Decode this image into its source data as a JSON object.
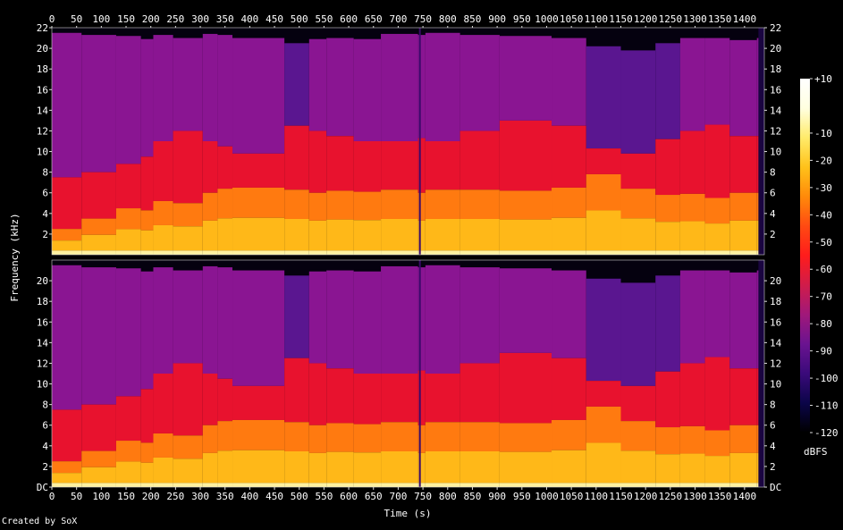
{
  "chart_data": {
    "type": "heatmap",
    "title": "",
    "xlabel": "Time (s)",
    "ylabel": "Frequency (kHz)",
    "xlim": [
      0,
      1440
    ],
    "x_ticks": [
      "0",
      "50",
      "100",
      "150",
      "200",
      "250",
      "300",
      "350",
      "400",
      "450",
      "500",
      "550",
      "600",
      "650",
      "700",
      "750",
      "800",
      "850",
      "900",
      "950",
      "1000",
      "1050",
      "1100",
      "1150",
      "1200",
      "1250",
      "1300",
      "1350",
      "1400"
    ],
    "channels": [
      {
        "y_ticks": [
          "22",
          "20",
          "18",
          "16",
          "14",
          "12",
          "10",
          "8",
          "6",
          "4",
          "2"
        ],
        "ylim": [
          0,
          22
        ]
      },
      {
        "y_ticks": [
          "20",
          "18",
          "16",
          "14",
          "12",
          "10",
          "8",
          "6",
          "4",
          "2",
          "DC"
        ],
        "ylim": [
          0,
          22
        ]
      }
    ],
    "colorbar": {
      "label": "dBFS",
      "ticks": [
        "+10",
        "-10",
        "-20",
        "-30",
        "-40",
        "-50",
        "-60",
        "-70",
        "-80",
        "-90",
        "-100",
        "-110",
        "-120"
      ],
      "range": [
        -120,
        10
      ],
      "colors": [
        "#000000",
        "#0b0548",
        "#3a0a7a",
        "#6a1390",
        "#a0187a",
        "#d01c4a",
        "#ff1c1c",
        "#ff4a12",
        "#ff8a0a",
        "#ffc21a",
        "#ffeb6a",
        "#ffffe0",
        "#ffffff"
      ]
    },
    "segments_end_s": [
      60,
      130,
      180,
      205,
      245,
      305,
      335,
      365,
      470,
      520,
      555,
      610,
      665,
      740,
      755,
      825,
      905,
      1010,
      1080,
      1150,
      1220,
      1270,
      1320,
      1370,
      1425,
      1440
    ],
    "segments_treble_cutoff_khz": [
      21.5,
      21.3,
      21.2,
      20.9,
      21.3,
      21.0,
      21.4,
      21.3,
      21.0,
      20.5,
      20.9,
      21.0,
      20.9,
      21.4,
      21.3,
      21.5,
      21.3,
      21.2,
      21.0,
      20.2,
      19.8,
      20.5,
      21.0,
      21.0,
      20.8,
      21.0
    ],
    "segments_bright_khz": [
      2.5,
      3.5,
      4.5,
      4.3,
      5.2,
      5.0,
      6.0,
      6.4,
      6.5,
      6.3,
      6.0,
      6.2,
      6.1,
      6.3,
      6.0,
      6.3,
      6.3,
      6.2,
      6.5,
      7.8,
      6.4,
      5.8,
      5.9,
      5.5,
      6.0,
      6.0
    ],
    "segments_red_khz": [
      7.5,
      8.0,
      8.8,
      9.5,
      11.0,
      12.0,
      11.0,
      10.5,
      9.8,
      12.5,
      12.0,
      11.5,
      11.0,
      11.0,
      11.3,
      11.0,
      12.0,
      13.0,
      12.5,
      10.3,
      9.8,
      11.2,
      12.0,
      12.6,
      11.5,
      11.5
    ]
  },
  "footer": {
    "credit": "Created by SoX"
  }
}
